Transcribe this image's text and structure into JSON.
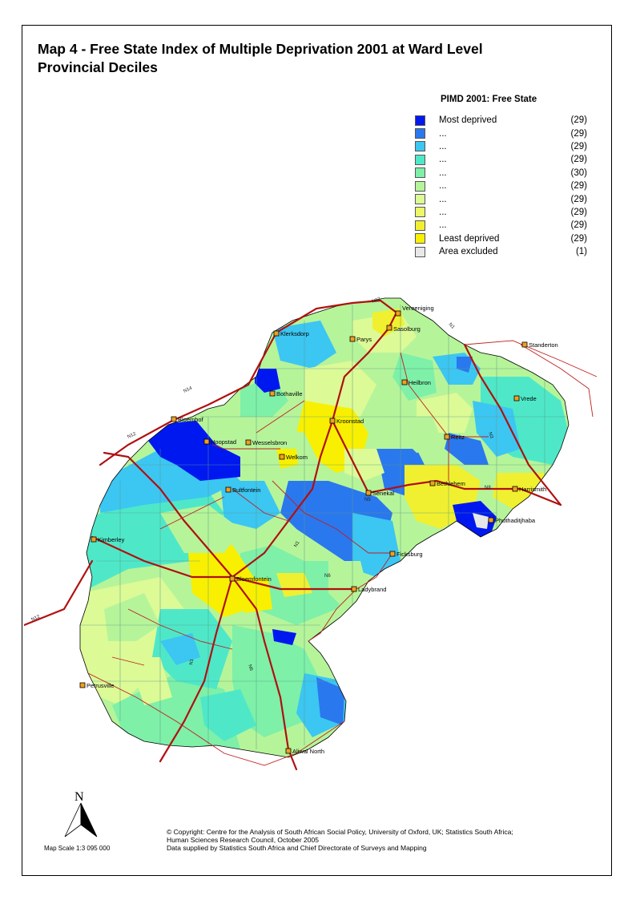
{
  "title": {
    "line1": "Map 4 - Free State Index of Multiple Deprivation 2001 at Ward Level",
    "line2": "Provincial Deciles"
  },
  "legend": {
    "title": "PIMD 2001: Free State",
    "items": [
      {
        "label": "Most deprived",
        "count": "(29)",
        "color": "#0018f0"
      },
      {
        "label": "...",
        "count": "(29)",
        "color": "#2a78ee"
      },
      {
        "label": "...",
        "count": "(29)",
        "color": "#3cc6f2"
      },
      {
        "label": "...",
        "count": "(29)",
        "color": "#4ee8c8"
      },
      {
        "label": "...",
        "count": "(30)",
        "color": "#7ef0a8"
      },
      {
        "label": "...",
        "count": "(29)",
        "color": "#b6f49a"
      },
      {
        "label": "...",
        "count": "(29)",
        "color": "#dcfa96"
      },
      {
        "label": "...",
        "count": "(29)",
        "color": "#ecf868"
      },
      {
        "label": "...",
        "count": "(29)",
        "color": "#f0f030"
      },
      {
        "label": "Least deprived",
        "count": "(29)",
        "color": "#f8f000"
      },
      {
        "label": "Area excluded",
        "count": "(1)",
        "color": "#e8e8e8"
      }
    ]
  },
  "cities": [
    {
      "name": "Vereeniging"
    },
    {
      "name": "Sasolburg"
    },
    {
      "name": "Klerksdorp"
    },
    {
      "name": "Parys"
    },
    {
      "name": "Standerton"
    },
    {
      "name": "Heilbron"
    },
    {
      "name": "Bothaville"
    },
    {
      "name": "Vrede"
    },
    {
      "name": "Bloemhof"
    },
    {
      "name": "Kroonstad"
    },
    {
      "name": "Hoopstad"
    },
    {
      "name": "Wesselsbron"
    },
    {
      "name": "Reitz"
    },
    {
      "name": "Welkom"
    },
    {
      "name": "Bethlehem"
    },
    {
      "name": "Bultfontein"
    },
    {
      "name": "Senekal"
    },
    {
      "name": "Harrismith"
    },
    {
      "name": "Phuthaditjhaba"
    },
    {
      "name": "Kimberley"
    },
    {
      "name": "Ficksburg"
    },
    {
      "name": "Bloemfontein"
    },
    {
      "name": "Ladybrand"
    },
    {
      "name": "Petrusville"
    },
    {
      "name": "Aliwal North"
    }
  ],
  "roads": [
    "N12",
    "N1",
    "N14",
    "N12",
    "N5",
    "N3",
    "N8",
    "N1",
    "N6",
    "N1",
    "N12",
    "N6"
  ],
  "north": {
    "label": "N"
  },
  "scale": {
    "text": "Map Scale 1:3 095 000"
  },
  "copyright": {
    "line1": "© Copyright: Centre for the Analysis of South African Social Policy, University of Oxford, UK; Statistics South Africa;",
    "line2": "Human Sciences Research Council,  October 2005",
    "line3": "Data supplied by Statistics South Africa and Chief Directorate of Surveys and Mapping"
  }
}
